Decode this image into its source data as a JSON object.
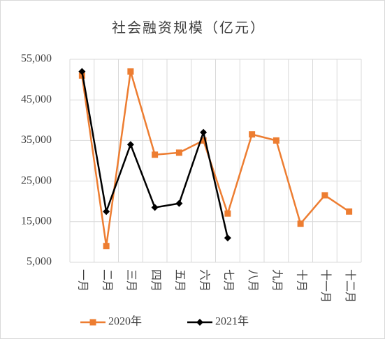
{
  "chart_data": {
    "type": "line",
    "title": "社会融资规模（亿元）",
    "categories": [
      "一月",
      "二月",
      "三月",
      "四月",
      "五月",
      "六月",
      "七月",
      "八月",
      "九月",
      "十月",
      "十一月",
      "十二月"
    ],
    "series": [
      {
        "name": "2020年",
        "color": "#ed7d31",
        "marker": "square",
        "values": [
          51000,
          9000,
          52000,
          31500,
          32000,
          35000,
          17000,
          36500,
          35000,
          14500,
          21500,
          17500
        ]
      },
      {
        "name": "2021年",
        "color": "#000000",
        "marker": "diamond",
        "values": [
          52000,
          17500,
          34000,
          18500,
          19500,
          37000,
          11000,
          null,
          null,
          null,
          null,
          null
        ]
      }
    ],
    "ylim": [
      5000,
      55000
    ],
    "yticks": [
      {
        "value": 5000,
        "label": "5,000"
      },
      {
        "value": 15000,
        "label": "15,000"
      },
      {
        "value": 25000,
        "label": "25,000"
      },
      {
        "value": 35000,
        "label": "35,000"
      },
      {
        "value": 45000,
        "label": "45,000"
      },
      {
        "value": 55000,
        "label": "55,000"
      }
    ],
    "grid": true,
    "legend": "bottom"
  }
}
